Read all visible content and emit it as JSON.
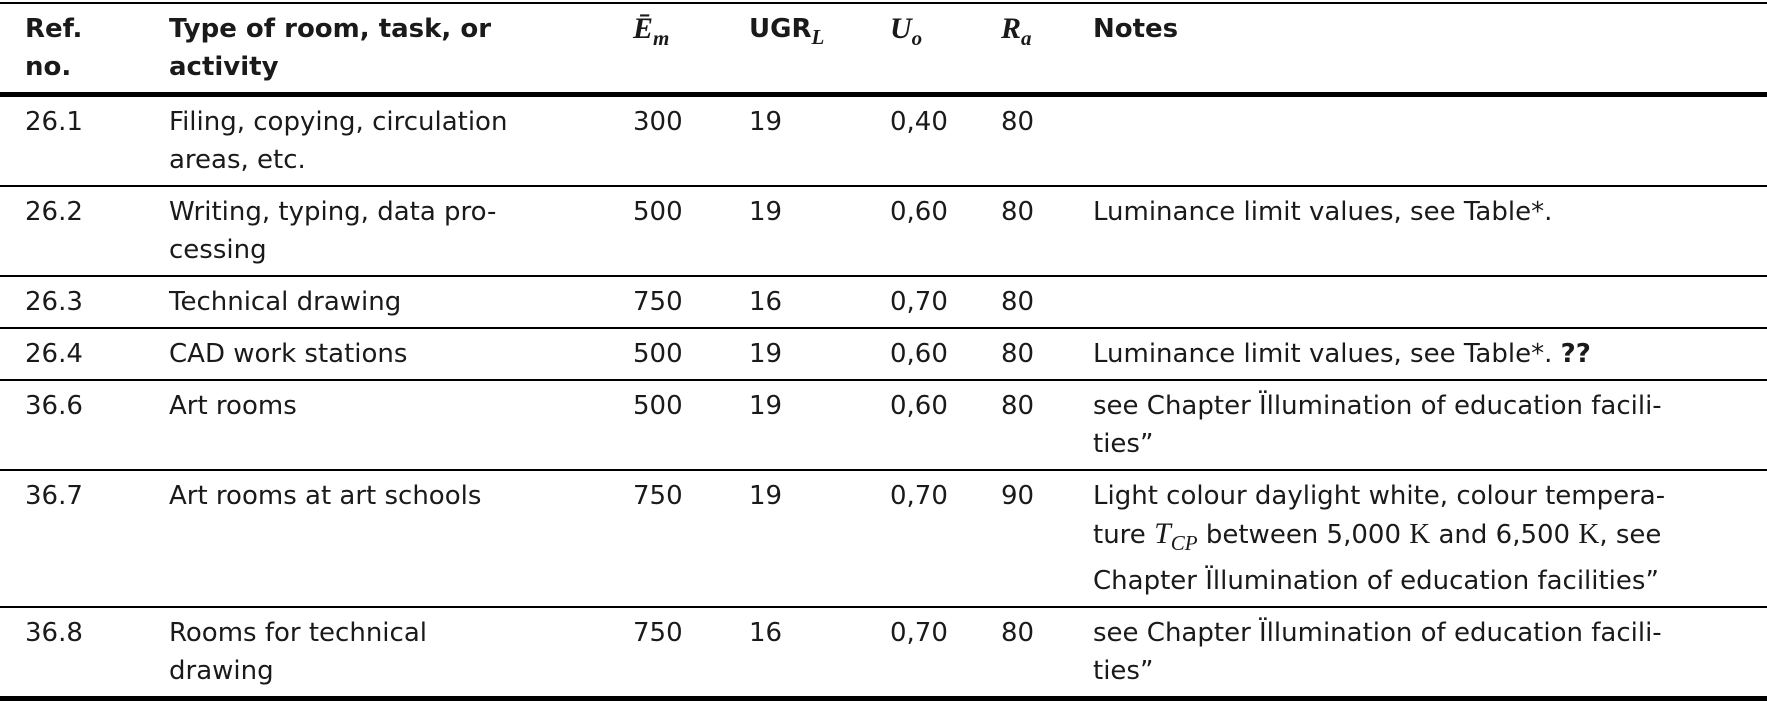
{
  "table": {
    "headers": [
      [
        "Ref.",
        "no."
      ],
      [
        "Type of room, task, or",
        "activity"
      ],
      [
        [
          {
            "t": "Ē",
            "math": true
          },
          {
            "t": "m",
            "math": true,
            "sub": true
          }
        ]
      ],
      [
        [
          {
            "t": "UGR"
          },
          {
            "t": "L",
            "math": true,
            "sub": true
          }
        ]
      ],
      [
        [
          {
            "t": "U",
            "math": true
          },
          {
            "t": "o",
            "math": true,
            "sub": true
          }
        ]
      ],
      [
        [
          {
            "t": "R",
            "math": true
          },
          {
            "t": "a",
            "math": true,
            "sub": true
          }
        ]
      ],
      [
        "Notes"
      ]
    ],
    "rows": [
      [
        [
          "26.1"
        ],
        [
          "Filing, copying, circulation",
          "areas, etc."
        ],
        [
          "300"
        ],
        [
          "19"
        ],
        [
          "0,40"
        ],
        [
          "80"
        ],
        []
      ],
      [
        [
          "26.2"
        ],
        [
          "Writing, typing, data pro-",
          "cessing"
        ],
        [
          "500"
        ],
        [
          "19"
        ],
        [
          "0,60"
        ],
        [
          "80"
        ],
        [
          "Luminance limit values, see Table*."
        ]
      ],
      [
        [
          "26.3"
        ],
        [
          "Technical drawing"
        ],
        [
          "750"
        ],
        [
          "16"
        ],
        [
          "0,70"
        ],
        [
          "80"
        ],
        []
      ],
      [
        [
          "26.4"
        ],
        [
          "CAD work stations"
        ],
        [
          "500"
        ],
        [
          "19"
        ],
        [
          "0,60"
        ],
        [
          "80"
        ],
        [
          [
            {
              "t": "Luminance limit values, see Table*. "
            },
            {
              "t": "??",
              "bold": true
            }
          ]
        ]
      ],
      [
        [
          "36.6"
        ],
        [
          "Art rooms"
        ],
        [
          "500"
        ],
        [
          "19"
        ],
        [
          "0,60"
        ],
        [
          "80"
        ],
        [
          "see Chapter Ïllumination of education facili-",
          "ties”"
        ]
      ],
      [
        [
          "36.7"
        ],
        [
          "Art rooms at art schools"
        ],
        [
          "750"
        ],
        [
          "19"
        ],
        [
          "0,70"
        ],
        [
          "90"
        ],
        [
          "Light colour daylight white, colour tempera-",
          [
            {
              "t": "ture "
            },
            {
              "t": "T",
              "math": true
            },
            {
              "t": "CP",
              "math": true,
              "sub": true
            },
            {
              "t": " between 5,000 "
            },
            {
              "t": "K",
              "serif": true
            },
            {
              "t": " and 6,500 "
            },
            {
              "t": "K",
              "serif": true
            },
            {
              "t": ", see"
            }
          ],
          "Chapter Ïllumination of education facilities”"
        ]
      ],
      [
        [
          "36.8"
        ],
        [
          "Rooms for technical",
          "drawing"
        ],
        [
          "750"
        ],
        [
          "16"
        ],
        [
          "0,70"
        ],
        [
          "80"
        ],
        [
          "see Chapter Ïllumination of education facili-",
          "ties”"
        ]
      ]
    ]
  }
}
